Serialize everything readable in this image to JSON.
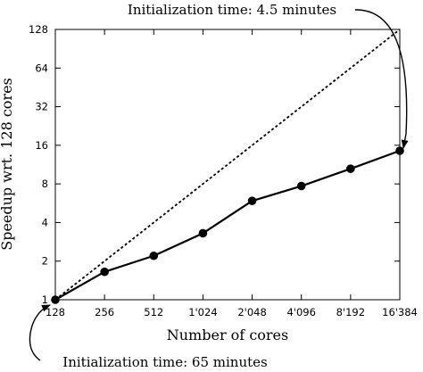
{
  "chart_data": {
    "type": "line",
    "xlabel": "Number of cores",
    "ylabel": "Speedup wrt. 128 cores",
    "x_tick_labels": [
      "128",
      "256",
      "512",
      "1'024",
      "2'048",
      "4'096",
      "8'192",
      "16'384"
    ],
    "y_tick_labels": [
      "1",
      "2",
      "4",
      "8",
      "16",
      "32",
      "64",
      "128"
    ],
    "x_scale": "log2",
    "y_scale": "log2",
    "xlim": [
      128,
      16384
    ],
    "ylim": [
      1,
      128
    ],
    "grid": false,
    "series": [
      {
        "style": "solid-with-markers",
        "x": [
          128,
          256,
          512,
          1024,
          2048,
          4096,
          8192,
          16384
        ],
        "y": [
          1,
          1.65,
          2.2,
          3.3,
          5.9,
          7.7,
          10.5,
          14.5
        ]
      },
      {
        "style": "dashed",
        "x": [
          128,
          16384
        ],
        "y": [
          1,
          128
        ]
      }
    ],
    "annotations": [
      {
        "text": "Initialization time: 4.5 minutes",
        "position": "top-right"
      },
      {
        "text": "Initialization time: 65 minutes",
        "position": "bottom-left"
      }
    ]
  }
}
